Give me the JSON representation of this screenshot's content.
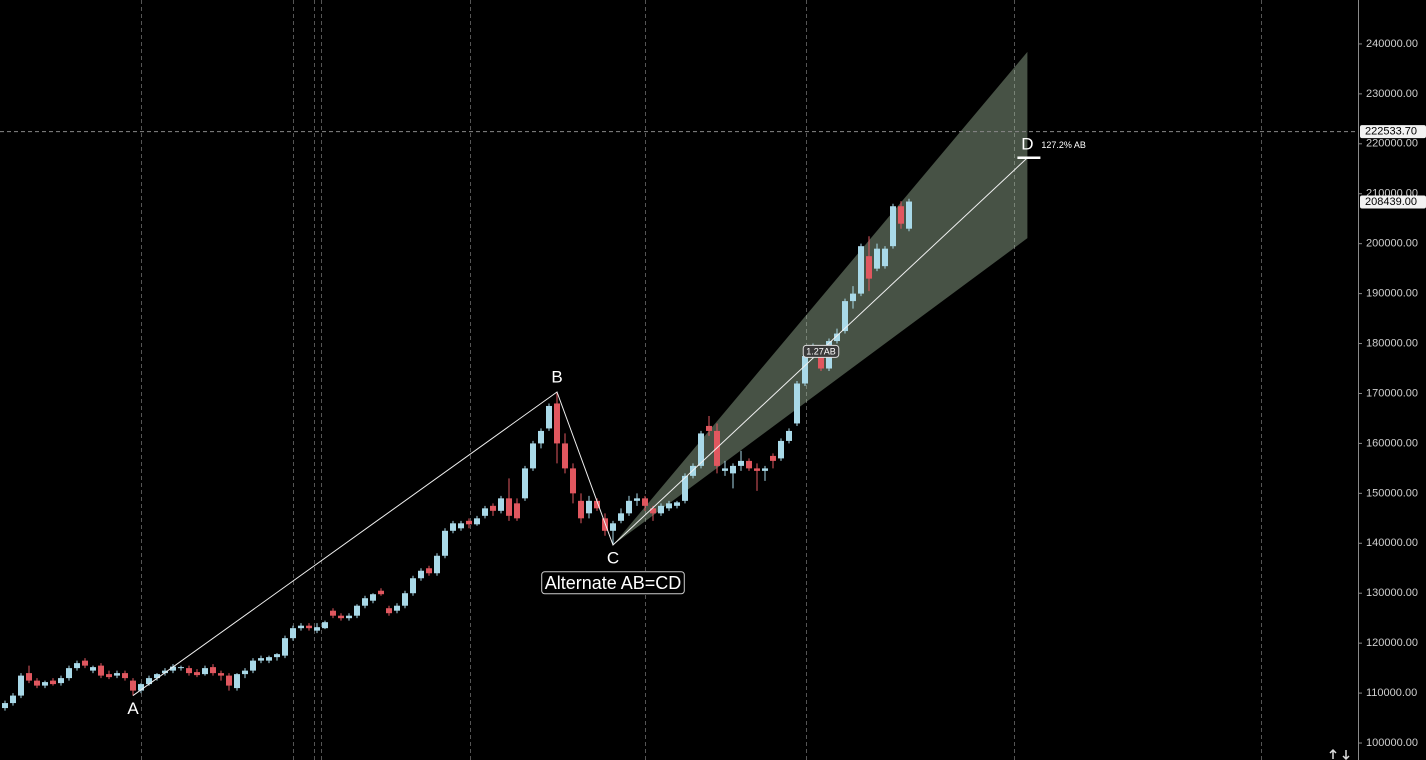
{
  "chart_data": {
    "type": "candlestick",
    "up_color": "#a9d9e8",
    "down_color": "#e0575f",
    "ylim": [
      96600,
      248800
    ],
    "yticks": [
      {
        "value": 100000,
        "label": "100000.00"
      },
      {
        "value": 110000,
        "label": "110000.00"
      },
      {
        "value": 120000,
        "label": "120000.00"
      },
      {
        "value": 130000,
        "label": "130000.00"
      },
      {
        "value": 140000,
        "label": "140000.00"
      },
      {
        "value": 150000,
        "label": "150000.00"
      },
      {
        "value": 160000,
        "label": "160000.00"
      },
      {
        "value": 170000,
        "label": "170000.00"
      },
      {
        "value": 180000,
        "label": "180000.00"
      },
      {
        "value": 190000,
        "label": "190000.00"
      },
      {
        "value": 200000,
        "label": "200000.00"
      },
      {
        "value": 210000,
        "label": "210000.00"
      },
      {
        "value": 220000,
        "label": "220000.00"
      },
      {
        "value": 230000,
        "label": "230000.00"
      },
      {
        "value": 240000,
        "label": "240000.00"
      }
    ],
    "open": [
      107000,
      108000,
      109500,
      114000,
      112500,
      111500,
      112500,
      112000,
      113000,
      115000,
      116500,
      114500,
      115500,
      113800,
      113500,
      114000,
      112500,
      110500,
      111800,
      113000,
      114000,
      114500,
      115000,
      115000,
      114200,
      113800,
      115200,
      114000,
      113500,
      111000,
      113800,
      114500,
      116500,
      116500,
      117200,
      117500,
      121000,
      123000,
      123500,
      122500,
      123000,
      126500,
      125500,
      125000,
      125500,
      127500,
      128500,
      130500,
      127000,
      126500,
      127500,
      130000,
      133000,
      135000,
      134000,
      137500,
      142500,
      143000,
      144500,
      143800,
      145500,
      147500,
      146500,
      149000,
      148000,
      149000,
      155000,
      160000,
      163000,
      168000,
      160000,
      155000,
      148500,
      146000,
      148500,
      145000,
      142500,
      144500,
      146000,
      148500,
      149000,
      147000,
      146000,
      147000,
      147500,
      148500,
      153500,
      155500,
      163500,
      162500,
      154500,
      154000,
      155500,
      156500,
      155000,
      154500,
      157500,
      157000,
      160500,
      164000,
      172000,
      177500,
      178000,
      175000,
      180500,
      182500,
      188500,
      190000,
      197500,
      195000,
      195500,
      199500,
      207500,
      203000
    ],
    "high": [
      108500,
      110000,
      114000,
      115500,
      113000,
      112500,
      113000,
      113500,
      115500,
      116500,
      117000,
      115500,
      116000,
      114500,
      114500,
      114500,
      113000,
      112000,
      113500,
      114000,
      115000,
      115800,
      115500,
      115500,
      114800,
      115500,
      115800,
      114500,
      114000,
      114000,
      115000,
      117000,
      117500,
      117500,
      118000,
      121500,
      123500,
      124000,
      124000,
      124000,
      124500,
      127000,
      126000,
      126000,
      127800,
      129500,
      130000,
      131000,
      127500,
      128000,
      130500,
      133500,
      135000,
      135500,
      138000,
      143000,
      144500,
      144500,
      145000,
      145500,
      147500,
      148000,
      149500,
      153000,
      149000,
      155500,
      160500,
      163000,
      168000,
      170300,
      162000,
      156000,
      150000,
      149500,
      149000,
      146000,
      144500,
      147000,
      149500,
      150000,
      149500,
      147500,
      148000,
      148500,
      148500,
      154000,
      156000,
      162500,
      165500,
      164000,
      156500,
      156000,
      158500,
      157000,
      156000,
      155500,
      158000,
      161000,
      163000,
      172500,
      178000,
      180000,
      179000,
      181000,
      183000,
      189000,
      191500,
      200000,
      201500,
      200000,
      199500,
      208000,
      208500,
      209000
    ],
    "low": [
      106500,
      107500,
      109000,
      112000,
      111000,
      111000,
      111500,
      111500,
      112500,
      114500,
      115000,
      114000,
      113000,
      112800,
      113000,
      112500,
      109500,
      110000,
      111500,
      112500,
      113500,
      114000,
      114500,
      113500,
      113200,
      113500,
      113500,
      112500,
      110500,
      110500,
      113000,
      114000,
      116000,
      116000,
      116500,
      117000,
      120500,
      122500,
      122500,
      122000,
      122800,
      125000,
      124500,
      124500,
      125000,
      127000,
      128000,
      129500,
      125500,
      126000,
      127000,
      129500,
      132500,
      133500,
      133500,
      137000,
      142000,
      142500,
      143000,
      143500,
      145000,
      145500,
      146000,
      144500,
      144500,
      148500,
      154500,
      159000,
      162500,
      156000,
      154000,
      148000,
      144000,
      145000,
      146500,
      141500,
      139650,
      144000,
      145500,
      147500,
      146500,
      144500,
      145500,
      146500,
      147000,
      148000,
      153000,
      155000,
      161500,
      154000,
      153500,
      151000,
      154500,
      154500,
      150500,
      152500,
      155000,
      156500,
      160000,
      163500,
      171500,
      177000,
      174500,
      174500,
      180000,
      182000,
      187000,
      189500,
      190500,
      194500,
      195000,
      199000,
      203000,
      202500
    ],
    "close": [
      108000,
      109500,
      113500,
      112500,
      111500,
      112200,
      111800,
      113000,
      115000,
      116000,
      115500,
      115200,
      113500,
      113200,
      114000,
      113000,
      110500,
      111800,
      113000,
      113800,
      114500,
      115300,
      115200,
      114000,
      113600,
      115000,
      114000,
      113500,
      111500,
      113800,
      114500,
      116500,
      117000,
      117200,
      117800,
      121000,
      123000,
      123500,
      123000,
      123200,
      124200,
      125500,
      125000,
      125500,
      127500,
      129000,
      129800,
      129800,
      126000,
      127500,
      130000,
      133000,
      134500,
      134000,
      137500,
      142500,
      144000,
      144000,
      143800,
      145000,
      147000,
      146500,
      149000,
      145500,
      145000,
      155000,
      160000,
      162500,
      167500,
      160000,
      155000,
      150000,
      145000,
      148500,
      147000,
      142500,
      144000,
      146000,
      148500,
      149000,
      147500,
      146000,
      147500,
      148000,
      148200,
      153500,
      155500,
      162000,
      162500,
      155500,
      155000,
      155500,
      156500,
      155000,
      154500,
      155000,
      156500,
      160500,
      162500,
      172000,
      177500,
      178000,
      175000,
      180500,
      182000,
      188500,
      190000,
      199500,
      193000,
      199000,
      199000,
      207500,
      204000,
      208439
    ],
    "price_tags": [
      {
        "value": 222533.7,
        "label": "222533.70",
        "line": true
      },
      {
        "value": 208439,
        "label": "208439.00",
        "line": false
      }
    ],
    "pattern": {
      "name": "Alternate AB=CD",
      "points": [
        {
          "label": "A",
          "index": 16,
          "price": 109500
        },
        {
          "label": "B",
          "index": 69,
          "price": 170300
        },
        {
          "label": "C",
          "index": 76,
          "price": 139650
        },
        {
          "label": "D",
          "index": 127.8,
          "price": 217200
        }
      ],
      "d_label": "127.2% AB",
      "fan": {
        "index": 127.8,
        "upper": 238400,
        "lower": 201100
      },
      "mid_label": {
        "text": "1.27AB",
        "index": 102,
        "price": 178300
      }
    }
  }
}
